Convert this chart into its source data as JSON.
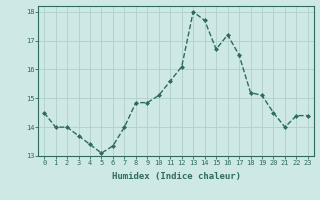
{
  "xlabel": "Humidex (Indice chaleur)",
  "x": [
    0,
    1,
    2,
    3,
    4,
    5,
    6,
    7,
    8,
    9,
    10,
    11,
    12,
    13,
    14,
    15,
    16,
    17,
    18,
    19,
    20,
    21,
    22,
    23
  ],
  "y": [
    14.5,
    14.0,
    14.0,
    13.7,
    13.4,
    13.1,
    13.35,
    14.0,
    14.85,
    14.85,
    15.1,
    15.6,
    16.1,
    18.0,
    17.7,
    16.7,
    17.2,
    16.5,
    15.2,
    15.1,
    14.5,
    14.0,
    14.4,
    14.4
  ],
  "line_color": "#2e6b5e",
  "marker": "D",
  "marker_size": 2.0,
  "bg_color": "#cde8e5",
  "grid_color": "#b0cfcc",
  "ylim": [
    13.0,
    18.2
  ],
  "xlim": [
    -0.5,
    23.5
  ],
  "yticks": [
    13,
    14,
    15,
    16,
    17,
    18
  ],
  "xticks": [
    0,
    1,
    2,
    3,
    4,
    5,
    6,
    7,
    8,
    9,
    10,
    11,
    12,
    13,
    14,
    15,
    16,
    17,
    18,
    19,
    20,
    21,
    22,
    23
  ],
  "tick_fontsize": 5.0,
  "xlabel_fontsize": 6.5,
  "line_width": 1.0,
  "axis_color": "#2e6b5e"
}
